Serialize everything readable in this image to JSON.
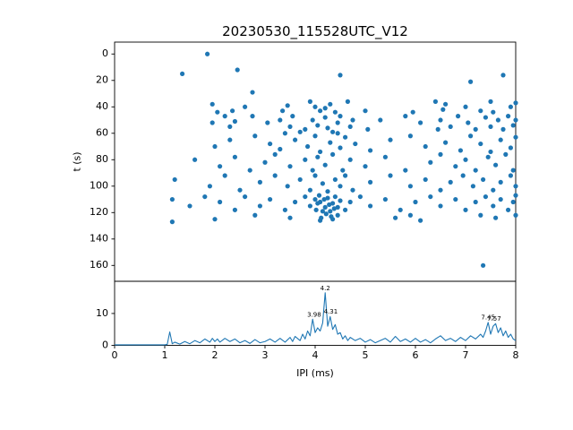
{
  "figure": {
    "title": "20230530_115528UTC_V12",
    "background": "#ffffff",
    "accent_color": "#1f77b4"
  },
  "chart_data": [
    {
      "type": "scatter",
      "title": "20230530_115528UTC_V12",
      "xlabel": "",
      "ylabel": "t (s)",
      "xlim": [
        0,
        8
      ],
      "ylim": [
        172,
        -9
      ],
      "y_inverted": true,
      "yticks": [
        0,
        20,
        40,
        60,
        80,
        100,
        120,
        140,
        160
      ],
      "marker_color": "#1f77b4",
      "points": [
        [
          1.85,
          0
        ],
        [
          1.35,
          15
        ],
        [
          4.5,
          16
        ],
        [
          7.1,
          21
        ],
        [
          7.75,
          16
        ],
        [
          2.45,
          12
        ],
        [
          2.75,
          29
        ],
        [
          1.95,
          38
        ],
        [
          2.05,
          44
        ],
        [
          2.35,
          43
        ],
        [
          2.6,
          40
        ],
        [
          3.35,
          43
        ],
        [
          3.45,
          39
        ],
        [
          3.9,
          36
        ],
        [
          4.0,
          40
        ],
        [
          4.1,
          43
        ],
        [
          4.2,
          41
        ],
        [
          4.3,
          38
        ],
        [
          4.4,
          44
        ],
        [
          4.65,
          36
        ],
        [
          5.0,
          43
        ],
        [
          5.95,
          44
        ],
        [
          6.4,
          36
        ],
        [
          6.55,
          42
        ],
        [
          6.6,
          38
        ],
        [
          7.0,
          40
        ],
        [
          7.3,
          43
        ],
        [
          7.5,
          36
        ],
        [
          7.55,
          44
        ],
        [
          7.9,
          40
        ],
        [
          8.0,
          37
        ],
        [
          1.95,
          52
        ],
        [
          2.2,
          47
        ],
        [
          2.3,
          55
        ],
        [
          2.4,
          51
        ],
        [
          2.75,
          47
        ],
        [
          3.05,
          52
        ],
        [
          3.3,
          50
        ],
        [
          3.5,
          55
        ],
        [
          3.55,
          47
        ],
        [
          3.7,
          59
        ],
        [
          3.8,
          57
        ],
        [
          3.95,
          50
        ],
        [
          4.05,
          54
        ],
        [
          4.2,
          48
        ],
        [
          4.25,
          56
        ],
        [
          4.35,
          59
        ],
        [
          4.45,
          52
        ],
        [
          4.5,
          47
        ],
        [
          4.7,
          55
        ],
        [
          4.75,
          50
        ],
        [
          5.05,
          57
        ],
        [
          5.3,
          50
        ],
        [
          5.8,
          47
        ],
        [
          6.1,
          52
        ],
        [
          6.45,
          57
        ],
        [
          6.5,
          50
        ],
        [
          6.7,
          55
        ],
        [
          6.85,
          47
        ],
        [
          7.05,
          52
        ],
        [
          7.2,
          57
        ],
        [
          7.4,
          48
        ],
        [
          7.5,
          55
        ],
        [
          7.65,
          50
        ],
        [
          7.75,
          57
        ],
        [
          7.85,
          47
        ],
        [
          7.95,
          54
        ],
        [
          8.0,
          50
        ],
        [
          2.0,
          70
        ],
        [
          2.3,
          65
        ],
        [
          2.8,
          62
        ],
        [
          3.1,
          68
        ],
        [
          3.3,
          72
        ],
        [
          3.4,
          60
        ],
        [
          3.6,
          65
        ],
        [
          3.85,
          70
        ],
        [
          4.0,
          62
        ],
        [
          4.1,
          74
        ],
        [
          4.3,
          67
        ],
        [
          4.45,
          60
        ],
        [
          4.5,
          71
        ],
        [
          4.6,
          63
        ],
        [
          4.8,
          68
        ],
        [
          5.1,
          73
        ],
        [
          5.5,
          65
        ],
        [
          5.9,
          62
        ],
        [
          6.2,
          70
        ],
        [
          6.6,
          67
        ],
        [
          6.9,
          73
        ],
        [
          7.1,
          62
        ],
        [
          7.3,
          68
        ],
        [
          7.5,
          74
        ],
        [
          7.7,
          65
        ],
        [
          7.9,
          71
        ],
        [
          8.0,
          63
        ],
        [
          1.6,
          80
        ],
        [
          2.1,
          85
        ],
        [
          2.4,
          78
        ],
        [
          2.7,
          88
        ],
        [
          3.0,
          82
        ],
        [
          3.2,
          76
        ],
        [
          3.5,
          85
        ],
        [
          3.8,
          80
        ],
        [
          3.95,
          88
        ],
        [
          4.05,
          78
        ],
        [
          4.2,
          84
        ],
        [
          4.35,
          76
        ],
        [
          4.55,
          88
        ],
        [
          4.7,
          80
        ],
        [
          5.0,
          85
        ],
        [
          5.4,
          78
        ],
        [
          5.8,
          88
        ],
        [
          6.3,
          82
        ],
        [
          6.5,
          76
        ],
        [
          6.8,
          85
        ],
        [
          7.0,
          80
        ],
        [
          7.2,
          88
        ],
        [
          7.45,
          78
        ],
        [
          7.6,
          84
        ],
        [
          7.8,
          76
        ],
        [
          7.95,
          88
        ],
        [
          1.2,
          95
        ],
        [
          1.9,
          100
        ],
        [
          2.2,
          92
        ],
        [
          2.5,
          103
        ],
        [
          2.9,
          97
        ],
        [
          3.2,
          92
        ],
        [
          3.45,
          100
        ],
        [
          3.7,
          95
        ],
        [
          3.9,
          103
        ],
        [
          4.0,
          92
        ],
        [
          4.15,
          98
        ],
        [
          4.25,
          104
        ],
        [
          4.4,
          95
        ],
        [
          4.5,
          100
        ],
        [
          4.6,
          92
        ],
        [
          4.75,
          103
        ],
        [
          5.1,
          97
        ],
        [
          5.5,
          92
        ],
        [
          5.9,
          100
        ],
        [
          6.2,
          95
        ],
        [
          6.5,
          103
        ],
        [
          6.7,
          97
        ],
        [
          6.95,
          92
        ],
        [
          7.15,
          100
        ],
        [
          7.35,
          95
        ],
        [
          7.55,
          103
        ],
        [
          7.7,
          97
        ],
        [
          7.9,
          92
        ],
        [
          8.0,
          100
        ],
        [
          1.15,
          110
        ],
        [
          1.5,
          115
        ],
        [
          1.8,
          108
        ],
        [
          2.1,
          112
        ],
        [
          2.4,
          118
        ],
        [
          2.6,
          108
        ],
        [
          2.9,
          115
        ],
        [
          3.1,
          110
        ],
        [
          3.4,
          118
        ],
        [
          3.6,
          112
        ],
        [
          3.8,
          108
        ],
        [
          3.9,
          115
        ],
        [
          4.0,
          110
        ],
        [
          4.02,
          118
        ],
        [
          4.05,
          113
        ],
        [
          4.08,
          107
        ],
        [
          4.1,
          112
        ],
        [
          4.12,
          124
        ],
        [
          4.15,
          119
        ],
        [
          4.18,
          110
        ],
        [
          4.2,
          116
        ],
        [
          4.22,
          121
        ],
        [
          4.25,
          109
        ],
        [
          4.28,
          114
        ],
        [
          4.3,
          119
        ],
        [
          4.32,
          123
        ],
        [
          4.35,
          113
        ],
        [
          4.38,
          117
        ],
        [
          4.4,
          108
        ],
        [
          4.45,
          116
        ],
        [
          4.45,
          122
        ],
        [
          4.5,
          111
        ],
        [
          4.6,
          118
        ],
        [
          4.7,
          112
        ],
        [
          4.9,
          108
        ],
        [
          5.1,
          115
        ],
        [
          5.4,
          110
        ],
        [
          5.7,
          118
        ],
        [
          6.0,
          112
        ],
        [
          6.3,
          108
        ],
        [
          6.5,
          115
        ],
        [
          6.8,
          110
        ],
        [
          7.0,
          118
        ],
        [
          7.2,
          112
        ],
        [
          7.4,
          108
        ],
        [
          7.55,
          115
        ],
        [
          7.7,
          110
        ],
        [
          7.85,
          118
        ],
        [
          7.95,
          112
        ],
        [
          8.0,
          107
        ],
        [
          1.15,
          127
        ],
        [
          2.0,
          125
        ],
        [
          2.8,
          122
        ],
        [
          3.5,
          124
        ],
        [
          4.1,
          126
        ],
        [
          4.35,
          125
        ],
        [
          5.6,
          124
        ],
        [
          5.9,
          122
        ],
        [
          6.1,
          126
        ],
        [
          7.3,
          122
        ],
        [
          7.6,
          124
        ],
        [
          8.0,
          122
        ],
        [
          7.35,
          160
        ]
      ]
    },
    {
      "type": "line",
      "title": "",
      "xlabel": "IPI (ms)",
      "ylabel": "",
      "xlim": [
        0,
        8
      ],
      "ylim": [
        0,
        20.1
      ],
      "xticks": [
        0,
        1,
        2,
        3,
        4,
        5,
        6,
        7,
        8
      ],
      "yticks": [
        0,
        10
      ],
      "line_color": "#1f77b4",
      "points": [
        [
          0,
          0.15
        ],
        [
          0.5,
          0.15
        ],
        [
          1.0,
          0.15
        ],
        [
          1.05,
          0.3
        ],
        [
          1.1,
          4.2
        ],
        [
          1.15,
          0.5
        ],
        [
          1.2,
          1.0
        ],
        [
          1.3,
          0.4
        ],
        [
          1.4,
          1.2
        ],
        [
          1.5,
          0.5
        ],
        [
          1.6,
          1.5
        ],
        [
          1.7,
          0.8
        ],
        [
          1.8,
          2.0
        ],
        [
          1.9,
          1.0
        ],
        [
          1.95,
          2.2
        ],
        [
          2.0,
          1.2
        ],
        [
          2.05,
          2.0
        ],
        [
          2.1,
          1.0
        ],
        [
          2.2,
          2.2
        ],
        [
          2.3,
          1.2
        ],
        [
          2.4,
          2.0
        ],
        [
          2.5,
          0.8
        ],
        [
          2.6,
          1.5
        ],
        [
          2.7,
          0.6
        ],
        [
          2.8,
          1.8
        ],
        [
          2.9,
          0.8
        ],
        [
          3.0,
          1.2
        ],
        [
          3.1,
          2.0
        ],
        [
          3.2,
          1.0
        ],
        [
          3.3,
          2.2
        ],
        [
          3.4,
          1.0
        ],
        [
          3.5,
          2.5
        ],
        [
          3.55,
          1.2
        ],
        [
          3.6,
          2.8
        ],
        [
          3.7,
          1.5
        ],
        [
          3.75,
          3.5
        ],
        [
          3.8,
          2.0
        ],
        [
          3.85,
          4.5
        ],
        [
          3.9,
          3.0
        ],
        [
          3.95,
          8.2
        ],
        [
          4.0,
          4.0
        ],
        [
          4.05,
          5.5
        ],
        [
          4.1,
          4.5
        ],
        [
          4.15,
          7.0
        ],
        [
          4.2,
          16.5
        ],
        [
          4.25,
          6.0
        ],
        [
          4.3,
          9.0
        ],
        [
          4.35,
          5.0
        ],
        [
          4.4,
          6.5
        ],
        [
          4.45,
          3.5
        ],
        [
          4.5,
          4.0
        ],
        [
          4.55,
          2.0
        ],
        [
          4.6,
          3.0
        ],
        [
          4.65,
          1.5
        ],
        [
          4.7,
          2.5
        ],
        [
          4.8,
          1.5
        ],
        [
          4.9,
          2.2
        ],
        [
          5.0,
          1.0
        ],
        [
          5.1,
          1.8
        ],
        [
          5.2,
          0.8
        ],
        [
          5.3,
          1.5
        ],
        [
          5.4,
          2.2
        ],
        [
          5.5,
          1.0
        ],
        [
          5.6,
          2.8
        ],
        [
          5.7,
          1.2
        ],
        [
          5.8,
          2.0
        ],
        [
          5.9,
          1.0
        ],
        [
          6.0,
          2.2
        ],
        [
          6.1,
          1.0
        ],
        [
          6.2,
          1.8
        ],
        [
          6.3,
          0.8
        ],
        [
          6.4,
          2.0
        ],
        [
          6.5,
          3.0
        ],
        [
          6.6,
          1.5
        ],
        [
          6.7,
          2.2
        ],
        [
          6.8,
          1.2
        ],
        [
          6.9,
          2.5
        ],
        [
          7.0,
          1.5
        ],
        [
          7.1,
          3.0
        ],
        [
          7.2,
          2.0
        ],
        [
          7.3,
          3.5
        ],
        [
          7.35,
          2.5
        ],
        [
          7.4,
          4.5
        ],
        [
          7.45,
          7.2
        ],
        [
          7.5,
          3.5
        ],
        [
          7.55,
          6.0
        ],
        [
          7.6,
          6.8
        ],
        [
          7.65,
          4.0
        ],
        [
          7.7,
          5.5
        ],
        [
          7.75,
          3.0
        ],
        [
          7.8,
          4.5
        ],
        [
          7.85,
          2.5
        ],
        [
          7.9,
          3.5
        ],
        [
          7.95,
          2.0
        ],
        [
          8.0,
          1.5
        ]
      ],
      "annotations": [
        {
          "text": "4.2",
          "x": 4.2,
          "y": 16.5
        },
        {
          "text": "3.98",
          "x": 3.98,
          "y": 8.3
        },
        {
          "text": "4.31",
          "x": 4.31,
          "y": 9.2
        },
        {
          "text": "7.45",
          "x": 7.45,
          "y": 7.4
        },
        {
          "text": "7.57",
          "x": 7.57,
          "y": 7.0
        }
      ]
    }
  ]
}
